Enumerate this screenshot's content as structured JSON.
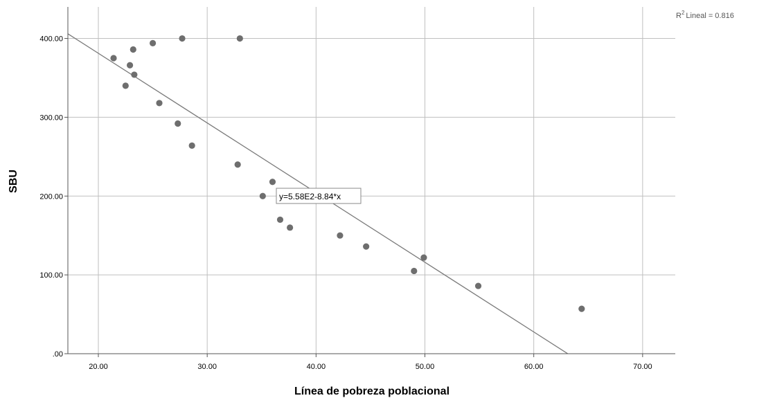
{
  "chart_data": {
    "type": "scatter",
    "xlabel": "Línea de pobreza poblacional",
    "ylabel": "SBU",
    "xlim": [
      17.2,
      73
    ],
    "ylim": [
      0,
      440
    ],
    "xticks": [
      20,
      30,
      40,
      50,
      60,
      70
    ],
    "xtick_labels": [
      "20.00",
      "30.00",
      "40.00",
      "50.00",
      "60.00",
      "70.00"
    ],
    "yticks": [
      0,
      100,
      200,
      300,
      400
    ],
    "ytick_labels": [
      ".00",
      "100.00",
      "200.00",
      "300.00",
      "400.00"
    ],
    "grid": true,
    "points": [
      {
        "x": 21.4,
        "y": 375
      },
      {
        "x": 22.5,
        "y": 340
      },
      {
        "x": 22.9,
        "y": 366
      },
      {
        "x": 23.2,
        "y": 386
      },
      {
        "x": 23.3,
        "y": 354
      },
      {
        "x": 25.0,
        "y": 394
      },
      {
        "x": 25.6,
        "y": 318
      },
      {
        "x": 27.3,
        "y": 292
      },
      {
        "x": 27.7,
        "y": 400
      },
      {
        "x": 28.6,
        "y": 264
      },
      {
        "x": 32.8,
        "y": 240
      },
      {
        "x": 33.0,
        "y": 400
      },
      {
        "x": 35.1,
        "y": 200
      },
      {
        "x": 36.0,
        "y": 218
      },
      {
        "x": 36.7,
        "y": 170
      },
      {
        "x": 37.6,
        "y": 160
      },
      {
        "x": 42.2,
        "y": 150
      },
      {
        "x": 44.6,
        "y": 136
      },
      {
        "x": 49.0,
        "y": 105
      },
      {
        "x": 49.9,
        "y": 122
      },
      {
        "x": 54.9,
        "y": 86
      },
      {
        "x": 64.4,
        "y": 57
      }
    ],
    "fit_line": {
      "intercept": 558,
      "slope": -8.84
    },
    "equation_label": "y=5.58E2-8.84*x",
    "r2_label": "Lineal = 0.816",
    "r2_prefix": "R",
    "r2_sup": "2",
    "colors": {
      "points": "#6e6e6e",
      "line": "#7a7a7a",
      "grid": "#bfbfbf",
      "axis": "#555555"
    }
  }
}
